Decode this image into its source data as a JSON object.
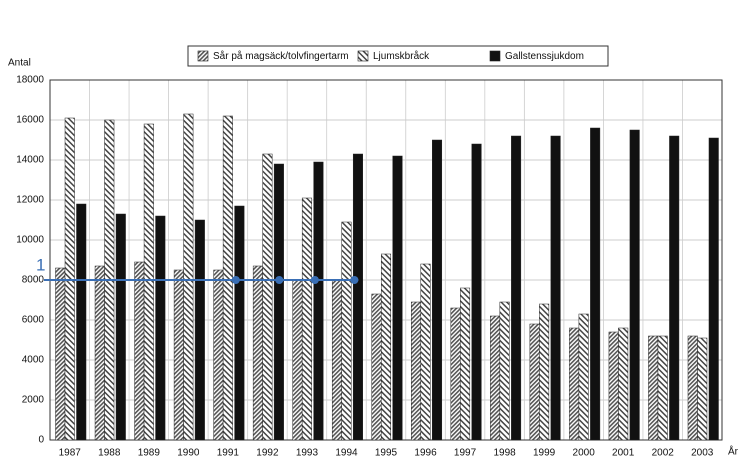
{
  "chart_data": {
    "type": "bar",
    "y_label": "Antal",
    "x_label": "År",
    "categories": [
      "1987",
      "1988",
      "1989",
      "1990",
      "1991",
      "1992",
      "1993",
      "1994",
      "1995",
      "1996",
      "1997",
      "1998",
      "1999",
      "2000",
      "2001",
      "2002",
      "2003"
    ],
    "series": [
      {
        "name": "Sår på magsäck/tolvfingertarm",
        "color": "#555555",
        "values": [
          8600,
          8700,
          8900,
          8500,
          8500,
          8700,
          8000,
          8000,
          7300,
          6900,
          6600,
          6200,
          5800,
          5600,
          5400,
          5200,
          5200
        ]
      },
      {
        "name": "Ljumskbråck",
        "color": "#777777",
        "values": [
          16100,
          16000,
          15800,
          16300,
          16200,
          14300,
          12100,
          10900,
          9300,
          8800,
          7600,
          6900,
          6800,
          6300,
          5600,
          5200,
          5100
        ]
      },
      {
        "name": "Gallstenssjukdom",
        "color": "#111111",
        "values": [
          11800,
          11300,
          11200,
          11000,
          11700,
          13800,
          13900,
          14300,
          14200,
          15000,
          14800,
          15200,
          15200,
          15600,
          15500,
          15200,
          15100
        ]
      }
    ],
    "ylim": [
      0,
      18000
    ],
    "yticks": [
      0,
      2000,
      4000,
      6000,
      8000,
      10000,
      12000,
      14000,
      16000,
      18000
    ],
    "grid": true,
    "reference_line": {
      "label": "1",
      "value": 8000,
      "color": "#3a6fb5"
    }
  }
}
